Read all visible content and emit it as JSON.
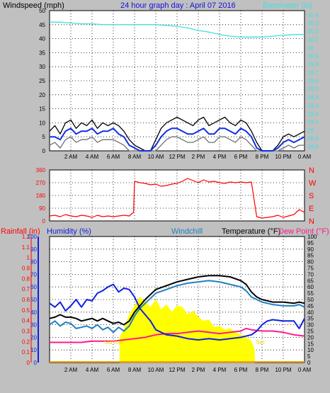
{
  "header": {
    "left": "Windspeed (mph)",
    "center": "24 hour graph day : April 07 2016",
    "right": "Barometer (in)"
  },
  "colors": {
    "bg": "#c0c0c0",
    "plot": "#ffffff",
    "grid": "#000000",
    "wind_avg": "#1030e0",
    "wind_gust": "#000000",
    "wind_min": "#707070",
    "baro": "#40e0e0",
    "dir": "#ff0000",
    "rain": "#ff0000",
    "humidity": "#1020e0",
    "windchill": "#2080c0",
    "temperature": "#000000",
    "dewpoint": "#ff1a8c",
    "solar": "#ffff00",
    "sun_label": "#e8d800"
  },
  "chart_data": [
    {
      "type": "line",
      "name": "wind-barometer",
      "x_ticks": [
        "2 AM",
        "4 AM",
        "6 AM",
        "8 AM",
        "10 AM",
        "12 PM",
        "2 PM",
        "4 PM",
        "6 PM",
        "8 PM",
        "10 PM",
        "0 AM"
      ],
      "x_range": [
        0,
        24
      ],
      "y_left": {
        "label": "Windspeed (mph)",
        "range": [
          0,
          50
        ],
        "ticks": [
          "0",
          "5",
          "10",
          "15",
          "20",
          "25",
          "30",
          "35",
          "40",
          "45",
          "50"
        ]
      },
      "y_right": {
        "label": "Barometer (in)",
        "range": [
          28.75,
          30.45
        ],
        "ticks": [
          "28.8",
          "28.9",
          "29",
          "29.1",
          "29.2",
          "29.3",
          "29.4",
          "29.5",
          "29.6",
          "29.7",
          "29.8",
          "29.9",
          "30",
          "30.1",
          "30.2",
          "30.3",
          "30.4"
        ]
      },
      "series": [
        {
          "key": "wind_gust",
          "axis": "left",
          "x": [
            0,
            0.5,
            1,
            1.5,
            2,
            2.5,
            3,
            3.5,
            4,
            4.5,
            5,
            5.5,
            6,
            6.5,
            7,
            7.5,
            8,
            8.5,
            9,
            9.5,
            10,
            10.5,
            11,
            11.5,
            12,
            12.5,
            13,
            13.5,
            14,
            14.5,
            15,
            15.5,
            16,
            16.5,
            17,
            17.5,
            18,
            18.5,
            19,
            19.5,
            20,
            20.5,
            21,
            21.5,
            22,
            22.5,
            23,
            23.5,
            24
          ],
          "y": [
            7,
            9,
            6,
            10,
            11,
            8,
            10,
            9,
            11,
            8,
            10,
            9,
            10,
            9,
            7,
            4,
            2,
            1,
            0,
            0,
            4,
            8,
            10,
            11,
            12,
            11,
            10,
            9,
            11,
            12,
            9,
            10,
            11,
            12,
            10,
            9,
            11,
            10,
            7,
            3,
            0,
            0,
            0,
            2,
            5,
            6,
            5,
            6,
            7
          ]
        },
        {
          "key": "wind_avg",
          "axis": "left",
          "x": [
            0,
            0.5,
            1,
            1.5,
            2,
            2.5,
            3,
            3.5,
            4,
            4.5,
            5,
            5.5,
            6,
            6.5,
            7,
            7.5,
            8,
            8.5,
            9,
            9.5,
            10,
            10.5,
            11,
            11.5,
            12,
            12.5,
            13,
            13.5,
            14,
            14.5,
            15,
            15.5,
            16,
            16.5,
            17,
            17.5,
            18,
            18.5,
            19,
            19.5,
            20,
            20.5,
            21,
            21.5,
            22,
            22.5,
            23,
            23.5,
            24
          ],
          "y": [
            5,
            5,
            4,
            7,
            8,
            6,
            7,
            7,
            8,
            6,
            7,
            7,
            8,
            6,
            5,
            2,
            1,
            0,
            0,
            0,
            2,
            5,
            7,
            8,
            8,
            7,
            6,
            6,
            7,
            8,
            6,
            6,
            8,
            8,
            7,
            6,
            8,
            7,
            5,
            1,
            0,
            0,
            0,
            1,
            3,
            4,
            3,
            4,
            5
          ]
        },
        {
          "key": "wind_min",
          "axis": "left",
          "x": [
            0,
            0.5,
            1,
            1.5,
            2,
            2.5,
            3,
            3.5,
            4,
            4.5,
            5,
            5.5,
            6,
            6.5,
            7,
            7.5,
            8,
            8.5,
            9,
            9.5,
            10,
            10.5,
            11,
            11.5,
            12,
            12.5,
            13,
            13.5,
            14,
            14.5,
            15,
            15.5,
            16,
            16.5,
            17,
            17.5,
            18,
            18.5,
            19,
            19.5,
            20,
            20.5,
            21,
            21.5,
            22,
            22.5,
            23,
            23.5,
            24
          ],
          "y": [
            2,
            3,
            1,
            4,
            5,
            3,
            4,
            4,
            5,
            3,
            4,
            4,
            4,
            3,
            2,
            0,
            0,
            0,
            0,
            0,
            0,
            2,
            4,
            5,
            5,
            4,
            3,
            3,
            4,
            5,
            3,
            3,
            5,
            5,
            4,
            3,
            5,
            4,
            2,
            0,
            0,
            0,
            0,
            0,
            1,
            2,
            1,
            2,
            2
          ]
        },
        {
          "key": "baro",
          "axis": "right",
          "x": [
            0,
            1,
            2,
            3,
            4,
            5,
            6,
            7,
            8,
            9,
            10,
            11,
            12,
            13,
            14,
            15,
            16,
            17,
            18,
            19,
            20,
            21,
            22,
            23,
            24
          ],
          "y": [
            30.31,
            30.31,
            30.3,
            30.29,
            30.29,
            30.28,
            30.28,
            30.28,
            30.28,
            30.28,
            30.28,
            30.27,
            30.26,
            30.24,
            30.21,
            30.19,
            30.16,
            30.14,
            30.13,
            30.13,
            30.13,
            30.14,
            30.15,
            30.16,
            30.16
          ]
        }
      ]
    },
    {
      "type": "scatter",
      "name": "wind-direction",
      "x_range": [
        0,
        24
      ],
      "y_left": {
        "range": [
          0,
          360
        ],
        "ticks": [
          "0",
          "90",
          "180",
          "270",
          "360"
        ]
      },
      "y_right": {
        "ticks": [
          "N",
          "E",
          "S",
          "W",
          "N"
        ]
      },
      "series": [
        {
          "key": "dir",
          "x": [
            0,
            0.5,
            1,
            1.5,
            2,
            2.5,
            3,
            3.5,
            4,
            4.5,
            5,
            5.5,
            6,
            6.5,
            7,
            7.5,
            7.9,
            8,
            8.5,
            9,
            9.5,
            10,
            10.5,
            11,
            11.5,
            12,
            12.5,
            13,
            13.5,
            14,
            14.5,
            15,
            15.5,
            16,
            16.5,
            17,
            17.5,
            18,
            18.5,
            19,
            19.5,
            20,
            20.5,
            21,
            21.5,
            22,
            22.5,
            23,
            23.5,
            24
          ],
          "y": [
            35,
            40,
            30,
            45,
            35,
            30,
            40,
            35,
            25,
            40,
            30,
            35,
            30,
            35,
            40,
            35,
            60,
            280,
            270,
            265,
            255,
            260,
            245,
            250,
            260,
            265,
            280,
            300,
            285,
            270,
            290,
            275,
            280,
            270,
            265,
            275,
            270,
            275,
            270,
            275,
            30,
            20,
            25,
            30,
            40,
            25,
            35,
            45,
            80,
            60
          ]
        }
      ]
    },
    {
      "type": "line",
      "name": "temperature-humidity",
      "x_range": [
        0,
        24
      ],
      "y_left_rain": {
        "label": "Rainfall (in)",
        "range": [
          0,
          1.2
        ],
        "ticks": [
          "0",
          "0.1",
          "0.2",
          "0.3",
          "0.4",
          "0.5",
          "0.6",
          "0.7",
          "0.8",
          "0.9",
          "1",
          "1.1",
          "1.2"
        ]
      },
      "y_left_hum": {
        "label": "Humidity (%)",
        "range": [
          0,
          100
        ],
        "ticks": [
          "0",
          "10",
          "20",
          "30",
          "40",
          "50",
          "60",
          "70",
          "80",
          "90",
          "100"
        ]
      },
      "y_right": {
        "label": "Temperature (°F)",
        "range": [
          0,
          100
        ],
        "ticks": [
          "0",
          "5",
          "10",
          "15",
          "20",
          "25",
          "30",
          "35",
          "40",
          "45",
          "50",
          "55",
          "60",
          "65",
          "70",
          "75",
          "80",
          "85",
          "90",
          "95",
          "100"
        ]
      },
      "labels": {
        "windchill": "Windchill",
        "dewpoint": "Dew Point (°F)",
        "sunrise": "Sunrise",
        "sunset": "Set"
      },
      "sunrise_x": 6.6,
      "sunset_x": 19.3,
      "series": [
        {
          "key": "humidity",
          "x": [
            0,
            0.5,
            1,
            1.5,
            2,
            2.5,
            3,
            3.5,
            4,
            4.5,
            5,
            5.5,
            6,
            6.5,
            7,
            7.5,
            8,
            8.5,
            9,
            9.5,
            10,
            11,
            12,
            13,
            14,
            15,
            16,
            17,
            18,
            19,
            19.5,
            20,
            20.5,
            21,
            22,
            23,
            23.5,
            24
          ],
          "y": [
            47,
            44,
            48,
            41,
            45,
            50,
            44,
            50,
            49,
            55,
            57,
            60,
            62,
            56,
            59,
            58,
            52,
            43,
            38,
            33,
            26,
            22,
            21,
            19,
            18,
            19,
            18,
            19,
            20,
            22,
            25,
            30,
            33,
            34,
            33,
            33,
            27,
            35
          ]
        },
        {
          "key": "temperature",
          "x": [
            0,
            0.5,
            1,
            1.5,
            2,
            2.5,
            3,
            3.5,
            4,
            4.5,
            5,
            5.5,
            6,
            6.5,
            7,
            7.5,
            8,
            8.5,
            9,
            9.5,
            10,
            11,
            12,
            13,
            14,
            15,
            16,
            17,
            18,
            18.5,
            19,
            19.5,
            20,
            20.5,
            21,
            22,
            23,
            23.5,
            24
          ],
          "y": [
            35,
            36,
            38,
            36,
            36,
            35,
            33,
            34,
            35,
            33,
            35,
            33,
            31,
            32,
            30,
            33,
            40,
            45,
            50,
            54,
            58,
            61,
            64,
            66,
            68,
            69,
            69,
            68,
            65,
            62,
            56,
            52,
            50,
            49,
            48,
            48,
            47,
            48,
            47
          ]
        },
        {
          "key": "windchill",
          "x": [
            0,
            0.5,
            1,
            1.5,
            2,
            2.5,
            3,
            3.5,
            4,
            4.5,
            5,
            5.5,
            6,
            6.5,
            7,
            7.5,
            8,
            8.5,
            9,
            9.5,
            10,
            11,
            12,
            13,
            14,
            15,
            16,
            17,
            18,
            18.5,
            19,
            19.5,
            20,
            20.5,
            21,
            22,
            23,
            23.5,
            24
          ],
          "y": [
            30,
            33,
            29,
            32,
            31,
            27,
            28,
            29,
            27,
            30,
            26,
            28,
            24,
            28,
            25,
            29,
            37,
            43,
            47,
            51,
            55,
            58,
            61,
            63,
            64,
            65,
            64,
            62,
            60,
            57,
            52,
            50,
            48,
            47,
            46,
            45,
            45,
            46,
            44
          ]
        },
        {
          "key": "dewpoint",
          "x": [
            0,
            1,
            2,
            3,
            4,
            5,
            6,
            7,
            8,
            9,
            10,
            11,
            12,
            13,
            14,
            15,
            16,
            17,
            18,
            18.5,
            19,
            20,
            21,
            22,
            23,
            24
          ],
          "y": [
            16,
            16,
            16,
            16,
            17,
            17,
            17,
            18,
            19,
            20,
            22,
            23,
            23,
            24,
            25,
            24,
            23,
            24,
            25,
            27,
            26,
            25,
            25,
            24,
            22,
            21
          ]
        },
        {
          "key": "solar",
          "x": [
            6.6,
            7,
            7.5,
            8,
            8.5,
            9,
            9.5,
            10,
            10.5,
            11,
            11.5,
            12,
            12.5,
            13,
            13.5,
            14,
            14.5,
            15,
            15.5,
            16,
            16.5,
            17,
            17.5,
            18,
            18.5,
            19,
            19.3
          ],
          "y": [
            20,
            26,
            38,
            45,
            52,
            48,
            44,
            50,
            42,
            46,
            40,
            45,
            44,
            38,
            41,
            36,
            33,
            34,
            28,
            29,
            26,
            27,
            24,
            22,
            20,
            17,
            10
          ]
        },
        {
          "key": "rain",
          "x": [
            0,
            24
          ],
          "y": [
            0,
            0
          ]
        }
      ]
    }
  ]
}
